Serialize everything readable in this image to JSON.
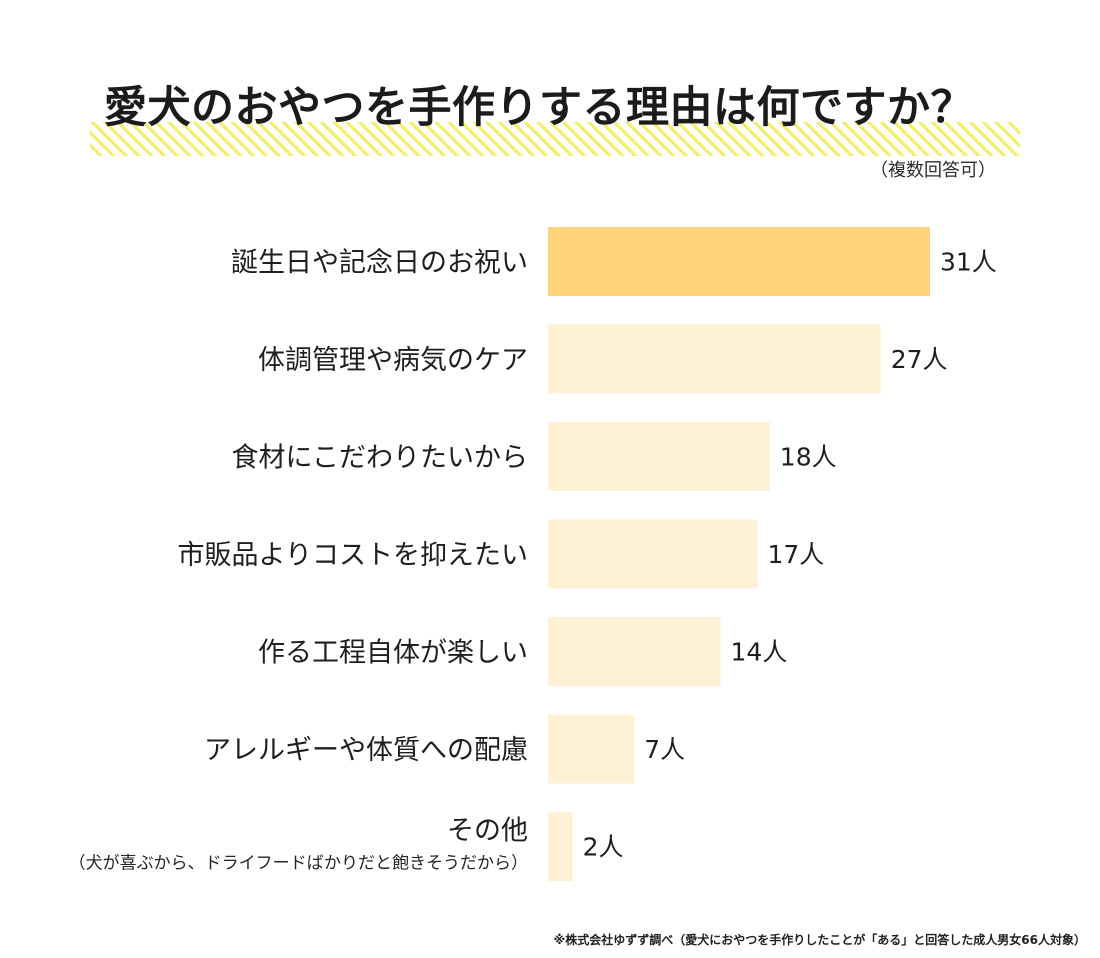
{
  "colors": {
    "highlight_bar": "#FDD47A",
    "bar": "#FEF1D6",
    "title_stripe": "#F3EE6B"
  },
  "title": "愛犬のおやつを手作りする理由は何ですか？",
  "note": "（複数回答可）",
  "footnote": "※株式会社ゆずず調べ（愛犬におやつを手作りしたことが「ある」と回答した成人男女66人対象）",
  "chart_data": {
    "type": "bar",
    "orientation": "horizontal",
    "title": "愛犬のおやつを手作りする理由は何ですか？",
    "subtitle": "（複数回答可）",
    "unit": "人",
    "categories": [
      "誕生日や記念日のお祝い",
      "体調管理や病気のケア",
      "食材にこだわりたいから",
      "市販品よりコストを抑えたい",
      "作る工程自体が楽しい",
      "アレルギーや体質への配慮",
      "その他"
    ],
    "category_notes": [
      "",
      "",
      "",
      "",
      "",
      "",
      "（犬が喜ぶから、ドライフードばかりだと飽きそうだから）"
    ],
    "values": [
      31,
      27,
      18,
      17,
      14,
      7,
      2
    ],
    "value_labels": [
      "31人",
      "27人",
      "18人",
      "17人",
      "14人",
      "7人",
      "2人"
    ],
    "highlight_index": 0,
    "xlim": [
      0,
      31
    ],
    "grid": false,
    "legend": "none"
  }
}
